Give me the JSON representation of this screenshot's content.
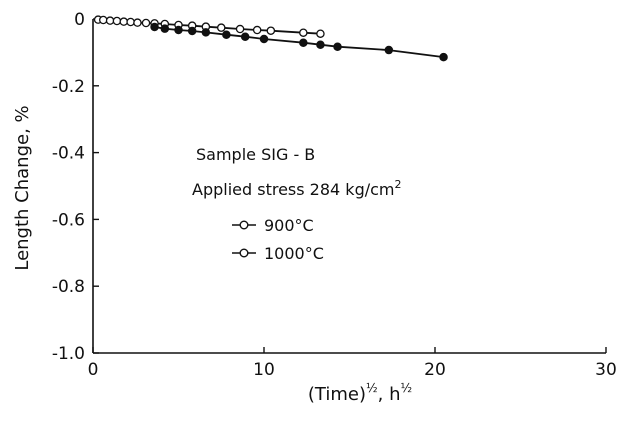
{
  "chart_data": {
    "type": "line",
    "title": "",
    "xlabel": "(Time)^½, h^½",
    "xlabel_main": "(Time)",
    "xlabel_sup1": "½",
    "xlabel_sep": ", h",
    "xlabel_sup2": "½",
    "ylabel": "Length Change, %",
    "xlim": [
      0,
      30
    ],
    "ylim": [
      -1.0,
      0
    ],
    "xticks": [
      0,
      10,
      20,
      30
    ],
    "yticks": [
      0,
      -0.2,
      -0.4,
      -0.6,
      -0.8,
      -1.0
    ],
    "xtick_labels": [
      "0",
      "10",
      "20",
      "30"
    ],
    "ytick_labels": [
      "0",
      "-0.2",
      "-0.4",
      "-0.6",
      "-0.8",
      "-1.0"
    ],
    "grid": false,
    "legend_position": "center",
    "series": [
      {
        "name": "900°C",
        "marker": "open-circle",
        "x": [
          0.3,
          0.6,
          1.0,
          1.4,
          1.8,
          2.2,
          2.6,
          3.1,
          3.6,
          4.2,
          5.0,
          5.8,
          6.6,
          7.5,
          8.6,
          9.6,
          10.4,
          12.3,
          13.3
        ],
        "y": [
          -0.002,
          -0.003,
          -0.005,
          -0.006,
          -0.008,
          -0.009,
          -0.011,
          -0.012,
          -0.013,
          -0.015,
          -0.018,
          -0.02,
          -0.023,
          -0.026,
          -0.03,
          -0.033,
          -0.035,
          -0.041,
          -0.044
        ]
      },
      {
        "name": "1000°C",
        "marker": "filled-circle",
        "x": [
          3.6,
          4.2,
          5.0,
          5.8,
          6.6,
          7.8,
          8.9,
          10.0,
          12.3,
          13.3,
          14.3,
          17.3,
          20.5
        ],
        "y": [
          -0.024,
          -0.029,
          -0.033,
          -0.036,
          -0.04,
          -0.047,
          -0.053,
          -0.06,
          -0.071,
          -0.077,
          -0.083,
          -0.093,
          -0.114
        ]
      }
    ],
    "annotations": {
      "sample": "Sample SIG - B",
      "stress_prefix": "Applied stress 284 kg/cm",
      "stress_sup": "2"
    }
  }
}
